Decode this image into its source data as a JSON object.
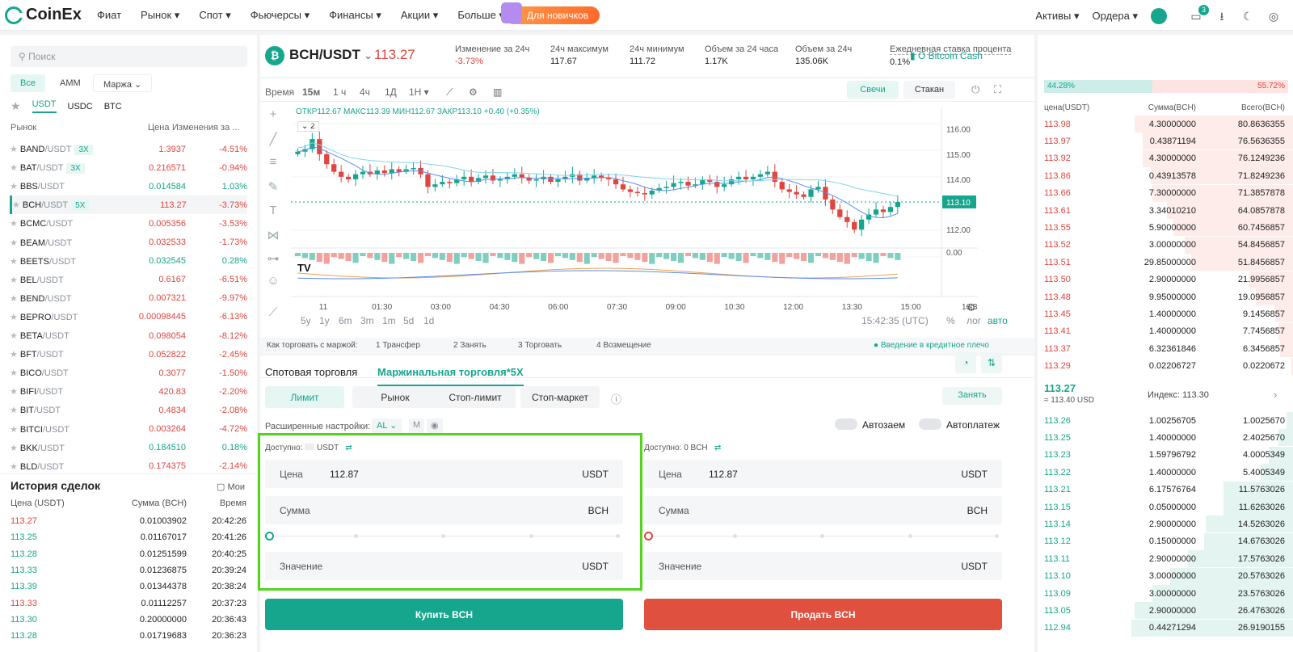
{
  "header": {
    "brand": "CoinEx",
    "nav": [
      "Фиат",
      "Рынок",
      "Спот",
      "Фьючерсы",
      "Финансы",
      "Акции",
      "Больше"
    ],
    "promo": "Для новичков",
    "assets": "Активы",
    "orders": "Ордера",
    "notifications": "3"
  },
  "left": {
    "search_placeholder": "Поиск",
    "filters": [
      "Все",
      "AMM",
      "Маржа"
    ],
    "quotes": [
      "USDT",
      "USDC",
      "BTC"
    ],
    "col_market": "Рынок",
    "col_price": "Цена",
    "col_change": "Изменения за ...",
    "markets": [
      {
        "base": "BAND",
        "quote": "/USDT",
        "lev": "3X",
        "price": "1.3937",
        "change": "-4.51%",
        "up": false
      },
      {
        "base": "BAT",
        "quote": "/USDT",
        "lev": "3X",
        "price": "0.216571",
        "change": "-0.94%",
        "up": false
      },
      {
        "base": "BBS",
        "quote": "/USDT",
        "lev": "",
        "price": "0.014584",
        "change": "1.03%",
        "up": true
      },
      {
        "base": "BCH",
        "quote": "/USDT",
        "lev": "5X",
        "price": "113.27",
        "change": "-3.73%",
        "up": false
      },
      {
        "base": "BCMC",
        "quote": "/USDT",
        "lev": "",
        "price": "0.005356",
        "change": "-3.53%",
        "up": false
      },
      {
        "base": "BEAM",
        "quote": "/USDT",
        "lev": "",
        "price": "0.032533",
        "change": "-1.73%",
        "up": false
      },
      {
        "base": "BEETS",
        "quote": "/USDT",
        "lev": "",
        "price": "0.032545",
        "change": "0.28%",
        "up": true
      },
      {
        "base": "BEL",
        "quote": "/USDT",
        "lev": "",
        "price": "0.6167",
        "change": "-6.51%",
        "up": false
      },
      {
        "base": "BEND",
        "quote": "/USDT",
        "lev": "",
        "price": "0.007321",
        "change": "-9.97%",
        "up": false
      },
      {
        "base": "BEPRO",
        "quote": "/USDT",
        "lev": "",
        "price": "0.00098445",
        "change": "-6.13%",
        "up": false
      },
      {
        "base": "BETA",
        "quote": "/USDT",
        "lev": "",
        "price": "0.098054",
        "change": "-8.12%",
        "up": false
      },
      {
        "base": "BFT",
        "quote": "/USDT",
        "lev": "",
        "price": "0.052822",
        "change": "-2.45%",
        "up": false
      },
      {
        "base": "BICO",
        "quote": "/USDT",
        "lev": "",
        "price": "0.3077",
        "change": "-1.50%",
        "up": false
      },
      {
        "base": "BIFI",
        "quote": "/USDT",
        "lev": "",
        "price": "420.83",
        "change": "-2.20%",
        "up": false
      },
      {
        "base": "BIT",
        "quote": "/USDT",
        "lev": "",
        "price": "0.4834",
        "change": "-2.08%",
        "up": false
      },
      {
        "base": "BITCI",
        "quote": "/USDT",
        "lev": "",
        "price": "0.003264",
        "change": "-4.72%",
        "up": false
      },
      {
        "base": "BKK",
        "quote": "/USDT",
        "lev": "",
        "price": "0.184510",
        "change": "0.18%",
        "up": true
      },
      {
        "base": "BLD",
        "quote": "/USDT",
        "lev": "",
        "price": "0.174375",
        "change": "-2.14%",
        "up": false
      }
    ],
    "history_title": "История сделок",
    "history_mine": "Мои",
    "h_price": "Цена (USDT)",
    "h_amount": "Сумма (BCH)",
    "h_time": "Время",
    "trades": [
      {
        "p": "113.27",
        "a": "0.01003902",
        "t": "20:42:26",
        "up": false
      },
      {
        "p": "113.25",
        "a": "0.01167017",
        "t": "20:41:26",
        "up": true
      },
      {
        "p": "113.28",
        "a": "0.01251599",
        "t": "20:40:25",
        "up": true
      },
      {
        "p": "113.33",
        "a": "0.01236875",
        "t": "20:39:24",
        "up": true
      },
      {
        "p": "113.39",
        "a": "0.01344378",
        "t": "20:38:24",
        "up": true
      },
      {
        "p": "113.33",
        "a": "0.01112257",
        "t": "20:37:23",
        "up": false
      },
      {
        "p": "113.30",
        "a": "0.20000000",
        "t": "20:36:43",
        "up": true
      },
      {
        "p": "113.28",
        "a": "0.01719683",
        "t": "20:36:23",
        "up": true
      }
    ]
  },
  "ticker": {
    "pair": "BCH/USDT",
    "price": "113.27",
    "stats": [
      {
        "label": "Изменение за 24ч",
        "value": "-3.73%"
      },
      {
        "label": "24ч максимум",
        "value": "117.67"
      },
      {
        "label": "24ч минимум",
        "value": "111.72"
      },
      {
        "label": "Объем за 24 часа",
        "value": "1.17K"
      },
      {
        "label": "Объем за 24ч",
        "value": "135.06K"
      },
      {
        "label": "Ежедневная ставка процента",
        "value": "0.1%"
      }
    ],
    "about": "О Bitcoin Cash"
  },
  "chart": {
    "intervals": [
      "Время",
      "15м",
      "1 ч",
      "4ч",
      "1Д",
      "1Н"
    ],
    "view_candles": "Свечи",
    "view_book": "Стакан",
    "ohlc": "ОТКР112.67  МАКС113.39  МИН112.67  ЗАКР113.10  +0.40 (+0.35%)",
    "ohlc_badge": "2",
    "yticks": [
      "116.00",
      "115.00",
      "114.00",
      "113.10",
      "112.00"
    ],
    "vol_tick": "0.00",
    "xticks": [
      "11",
      "01:30",
      "03:00",
      "04:30",
      "06:00",
      "07:30",
      "09:00",
      "10:30",
      "12:00",
      "13:30",
      "15:00",
      "16:3"
    ],
    "ranges": [
      "5y",
      "1y",
      "6m",
      "3m",
      "1m",
      "5d",
      "1d"
    ],
    "clock": "15:42:35 (UTC)",
    "pct": "%",
    "log": "лог",
    "auto": "авто",
    "chart_data": {
      "type": "candlestick",
      "last": 113.1,
      "ylim": [
        111.3,
        116.6
      ]
    }
  },
  "steps": {
    "title": "Как торговать с маржой:",
    "items": [
      "1  Трансфер",
      "2  Занять",
      "3  Торговать",
      "4  Возмещение"
    ],
    "link": "Введение в кредитное плечо"
  },
  "form": {
    "tab_spot": "Спотовая торговля",
    "tab_margin": "Маржинальная торговля*5X",
    "types": [
      "Лимит",
      "Рынок",
      "Стоп-лимит",
      "Стоп-маркет"
    ],
    "borrow": "Занять",
    "adv_label": "Расширенные настройки:",
    "adv_value": "AL",
    "adv_m": "M",
    "auto_borrow": "Автозаем",
    "auto_repay": "Автоплатеж",
    "buy": {
      "avail": "Доступно:",
      "avail_unit": "USDT",
      "price_label": "Цена",
      "price": "112.87",
      "price_unit": "USDT",
      "amount_label": "Сумма",
      "amount_unit": "BCH",
      "value_label": "Значение",
      "value_unit": "USDT",
      "button": "Купить BCH"
    },
    "sell": {
      "avail": "Доступно: 0 BCH",
      "price_label": "Цена",
      "price": "112.87",
      "price_unit": "USDT",
      "amount_label": "Сумма",
      "amount_unit": "BCH",
      "value_label": "Значение",
      "value_unit": "USDT",
      "button": "Продать BCH"
    }
  },
  "book": {
    "buy_pct": "44.28%",
    "sell_pct": "55.72%",
    "col_price": "цена(USDT)",
    "col_amount": "Сумма(BCH)",
    "col_total": "Всего(BCH)",
    "asks": [
      {
        "p": "113.98",
        "a": "4.30000000",
        "t": "80.8636355",
        "d": 0.98
      },
      {
        "p": "113.97",
        "a": "0.43871194",
        "t": "76.5636355",
        "d": 0.93
      },
      {
        "p": "113.92",
        "a": "4.30000000",
        "t": "76.1249236",
        "d": 0.93
      },
      {
        "p": "113.86",
        "a": "0.43913578",
        "t": "71.8249236",
        "d": 0.88
      },
      {
        "p": "113.66",
        "a": "7.30000000",
        "t": "71.3857878",
        "d": 0.87
      },
      {
        "p": "113.61",
        "a": "3.34010210",
        "t": "64.0857878",
        "d": 0.78
      },
      {
        "p": "113.55",
        "a": "5.90000000",
        "t": "60.7456857",
        "d": 0.74
      },
      {
        "p": "113.52",
        "a": "3.00000000",
        "t": "54.8456857",
        "d": 0.67
      },
      {
        "p": "113.51",
        "a": "29.85000000",
        "t": "51.8456857",
        "d": 0.63
      },
      {
        "p": "113.50",
        "a": "2.90000000",
        "t": "21.9956857",
        "d": 0.27
      },
      {
        "p": "113.48",
        "a": "9.95000000",
        "t": "19.0956857",
        "d": 0.23
      },
      {
        "p": "113.45",
        "a": "1.40000000",
        "t": "9.1456857",
        "d": 0.11
      },
      {
        "p": "113.41",
        "a": "1.40000000",
        "t": "7.7456857",
        "d": 0.09
      },
      {
        "p": "113.37",
        "a": "6.32361846",
        "t": "6.3456857",
        "d": 0.08
      },
      {
        "p": "113.29",
        "a": "0.02206727",
        "t": "0.0220672",
        "d": 0.01
      }
    ],
    "mid_price": "113.27",
    "mid_sub": "≈ 113.40 USD",
    "index": "Индекс: 113.30",
    "bids": [
      {
        "p": "113.26",
        "a": "1.00256705",
        "t": "1.0025670",
        "d": 0.04
      },
      {
        "p": "113.25",
        "a": "1.40000000",
        "t": "2.4025670",
        "d": 0.09
      },
      {
        "p": "113.23",
        "a": "1.59796792",
        "t": "4.0005349",
        "d": 0.15
      },
      {
        "p": "113.22",
        "a": "1.40000000",
        "t": "5.4005349",
        "d": 0.2
      },
      {
        "p": "113.21",
        "a": "6.17576764",
        "t": "11.5763026",
        "d": 0.43
      },
      {
        "p": "113.15",
        "a": "0.05000000",
        "t": "11.6263026",
        "d": 0.43
      },
      {
        "p": "113.14",
        "a": "2.90000000",
        "t": "14.5263026",
        "d": 0.54
      },
      {
        "p": "113.12",
        "a": "0.15000000",
        "t": "14.6763026",
        "d": 0.55
      },
      {
        "p": "113.11",
        "a": "2.90000000",
        "t": "17.5763026",
        "d": 0.65
      },
      {
        "p": "113.10",
        "a": "3.00000000",
        "t": "20.5763026",
        "d": 0.76
      },
      {
        "p": "113.09",
        "a": "3.00000000",
        "t": "23.5763026",
        "d": 0.87
      },
      {
        "p": "113.05",
        "a": "2.90000000",
        "t": "26.4763026",
        "d": 0.98
      },
      {
        "p": "112.94",
        "a": "0.44271294",
        "t": "26.9190155",
        "d": 1.0
      }
    ]
  },
  "colors": {
    "accent": "#16a68d",
    "down": "#e0453e",
    "highlight": "#52d41c"
  }
}
